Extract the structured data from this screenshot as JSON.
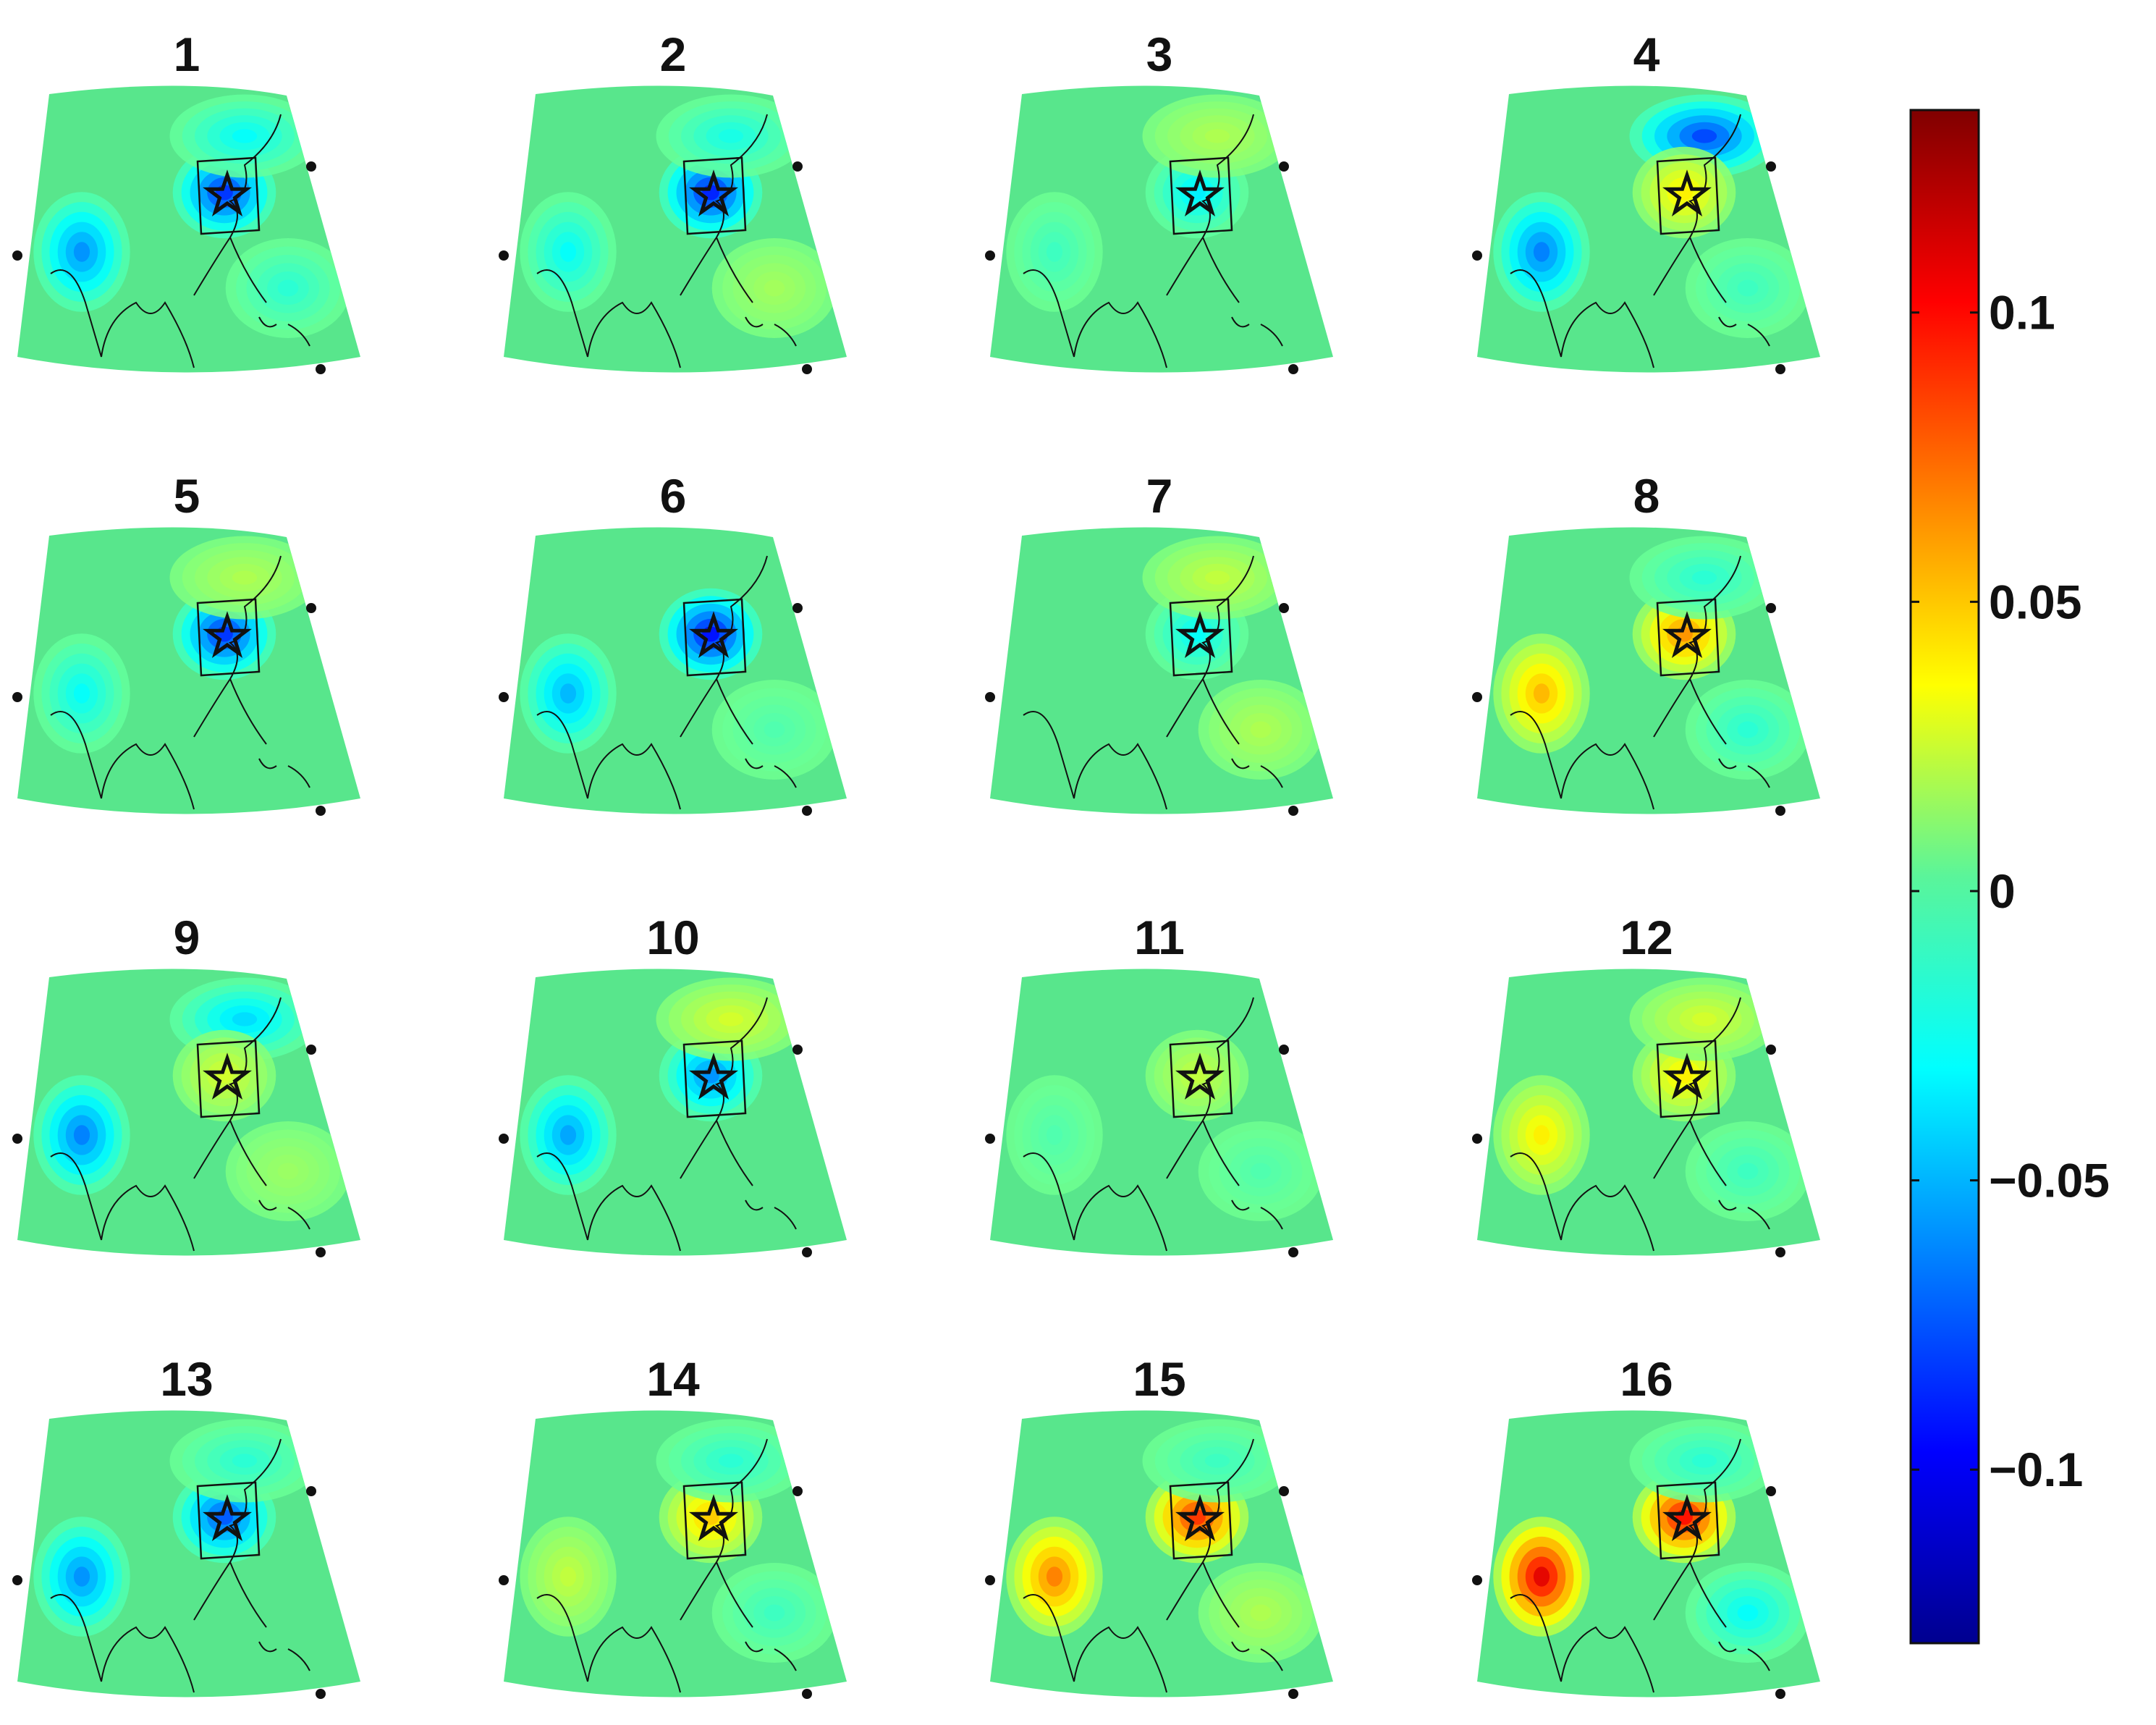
{
  "chart_data": {
    "type": "heatmap",
    "layout": "4x4 grid of map panels with shared colorbar",
    "panels": [
      {
        "label": "1",
        "features": [
          {
            "at": "box",
            "value": -0.085
          },
          {
            "at": "west",
            "value": -0.06
          },
          {
            "at": "north",
            "value": -0.03
          },
          {
            "at": "south",
            "value": -0.02
          }
        ]
      },
      {
        "label": "2",
        "features": [
          {
            "at": "box",
            "value": -0.09
          },
          {
            "at": "west",
            "value": -0.03
          },
          {
            "at": "north",
            "value": -0.025
          },
          {
            "at": "south",
            "value": 0.012
          }
        ]
      },
      {
        "label": "3",
        "features": [
          {
            "at": "box",
            "value": -0.035
          },
          {
            "at": "north",
            "value": 0.015
          },
          {
            "at": "west",
            "value": -0.015
          }
        ]
      },
      {
        "label": "4",
        "features": [
          {
            "at": "north",
            "value": -0.08
          },
          {
            "at": "box",
            "value": 0.04
          },
          {
            "at": "west",
            "value": -0.065
          },
          {
            "at": "south",
            "value": -0.015
          }
        ]
      },
      {
        "label": "5",
        "features": [
          {
            "at": "box",
            "value": -0.085
          },
          {
            "at": "west",
            "value": -0.03
          },
          {
            "at": "north",
            "value": 0.015
          }
        ]
      },
      {
        "label": "6",
        "features": [
          {
            "at": "box",
            "value": -0.095
          },
          {
            "at": "west",
            "value": -0.05
          },
          {
            "at": "south",
            "value": -0.01
          }
        ]
      },
      {
        "label": "7",
        "features": [
          {
            "at": "box",
            "value": -0.03
          },
          {
            "at": "north",
            "value": 0.02
          },
          {
            "at": "south",
            "value": 0.015
          }
        ]
      },
      {
        "label": "8",
        "features": [
          {
            "at": "box",
            "value": 0.065
          },
          {
            "at": "west",
            "value": 0.055
          },
          {
            "at": "north",
            "value": -0.02
          },
          {
            "at": "south",
            "value": -0.02
          }
        ]
      },
      {
        "label": "9",
        "features": [
          {
            "at": "north",
            "value": -0.04
          },
          {
            "at": "box",
            "value": 0.025
          },
          {
            "at": "west",
            "value": -0.065
          },
          {
            "at": "south",
            "value": 0.01
          }
        ]
      },
      {
        "label": "10",
        "features": [
          {
            "at": "box",
            "value": -0.06
          },
          {
            "at": "west",
            "value": -0.055
          },
          {
            "at": "north",
            "value": 0.025
          }
        ]
      },
      {
        "label": "11",
        "features": [
          {
            "at": "box",
            "value": 0.02
          },
          {
            "at": "west",
            "value": -0.01
          },
          {
            "at": "south",
            "value": -0.01
          }
        ]
      },
      {
        "label": "12",
        "features": [
          {
            "at": "box",
            "value": 0.04
          },
          {
            "at": "west",
            "value": 0.04
          },
          {
            "at": "north",
            "value": 0.025
          },
          {
            "at": "south",
            "value": -0.015
          }
        ]
      },
      {
        "label": "13",
        "features": [
          {
            "at": "box",
            "value": -0.075
          },
          {
            "at": "west",
            "value": -0.06
          },
          {
            "at": "north",
            "value": -0.02
          }
        ]
      },
      {
        "label": "14",
        "features": [
          {
            "at": "box",
            "value": 0.05
          },
          {
            "at": "west",
            "value": 0.02
          },
          {
            "at": "north",
            "value": -0.02
          },
          {
            "at": "south",
            "value": -0.015
          }
        ]
      },
      {
        "label": "15",
        "features": [
          {
            "at": "box",
            "value": 0.09
          },
          {
            "at": "west",
            "value": 0.07
          },
          {
            "at": "north",
            "value": -0.015
          },
          {
            "at": "south",
            "value": 0.015
          }
        ]
      },
      {
        "label": "16",
        "features": [
          {
            "at": "box",
            "value": 0.1
          },
          {
            "at": "west",
            "value": 0.11
          },
          {
            "at": "north",
            "value": -0.02
          },
          {
            "at": "south",
            "value": -0.03
          }
        ]
      }
    ],
    "colorbar": {
      "colormap": "jet",
      "range": [
        -0.13,
        0.135
      ],
      "ticks": [
        0.1,
        0.05,
        0,
        -0.05,
        -0.1
      ],
      "tick_labels": [
        "0.1",
        "0.05",
        "0",
        "−0.05",
        "−0.1"
      ]
    },
    "markers": [
      "star",
      "rectangle",
      "dot"
    ],
    "colors": {
      "background_land": "#58e68c",
      "line": "#111111"
    }
  }
}
